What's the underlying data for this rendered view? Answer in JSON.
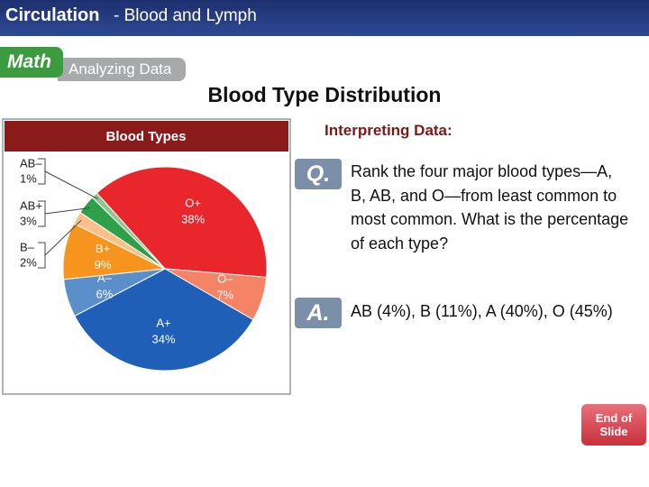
{
  "header": {
    "title": "Circulation",
    "subtitle": "- Blood and Lymph"
  },
  "banner": {
    "tab": "Math",
    "label": "Analyzing Data"
  },
  "slide_title": "Blood Type Distribution",
  "chart_data": {
    "type": "pie",
    "title": "Blood Types",
    "categories": [
      "O+",
      "O–",
      "A+",
      "A–",
      "B+",
      "B–",
      "AB+",
      "AB–"
    ],
    "values": [
      38,
      7,
      34,
      6,
      9,
      2,
      3,
      1
    ],
    "value_labels": [
      "38%",
      "7%",
      "34%",
      "6%",
      "9%",
      "2%",
      "3%",
      "1%"
    ],
    "colors": [
      "#e8262b",
      "#f58466",
      "#1f5fb8",
      "#5b8fc9",
      "#f7941d",
      "#fbc08a",
      "#2ea04a",
      "#8cc78f"
    ]
  },
  "section_label": "Interpreting Data:",
  "question": {
    "badge": "Q.",
    "text": "Rank the four major blood types—A, B, AB, and O—from least common to most common. What is the percentage of each type?"
  },
  "answer": {
    "badge": "A.",
    "text": "AB (4%), B (11%), A (40%), O (45%)"
  },
  "nav_button": "End of Slide"
}
